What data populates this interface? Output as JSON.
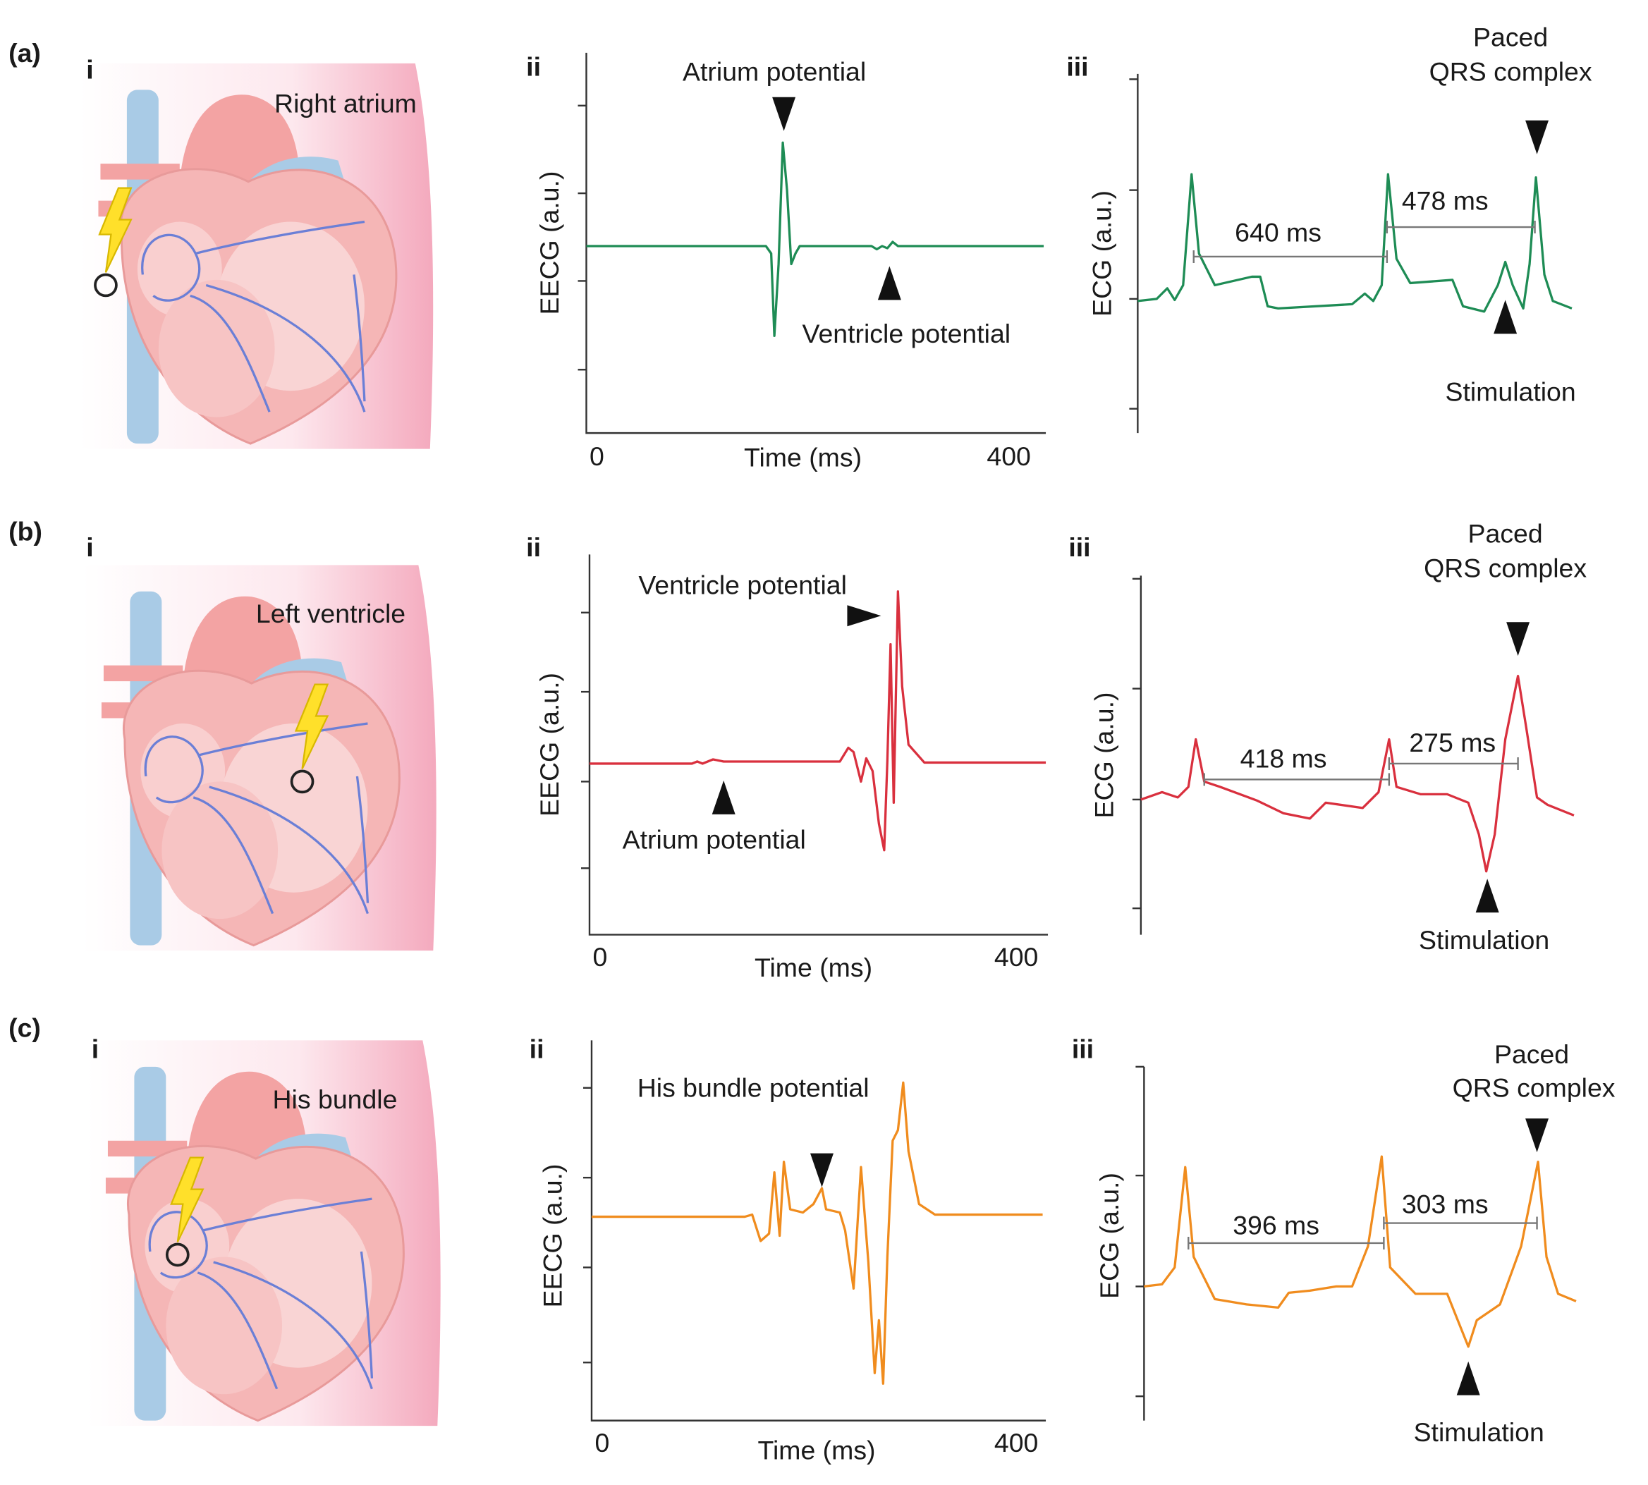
{
  "figure": {
    "panels": [
      {
        "label": "(a)",
        "color": "#1e8c55",
        "i": {
          "label": "i",
          "site": "Right atrium"
        },
        "ii": {
          "label": "ii",
          "y_label": "EECG (a.u.)",
          "x_label": "Time (ms)",
          "x_ticks": [
            "0",
            "400"
          ],
          "annotations": [
            "Atrium potential",
            "Ventricle potential"
          ]
        },
        "iii": {
          "label": "iii",
          "y_label": "ECG (a.u.)",
          "intervals": [
            "640 ms",
            "478 ms"
          ],
          "paced": [
            "Paced",
            "QRS complex"
          ],
          "stimulation": "Stimulation"
        }
      },
      {
        "label": "(b)",
        "color": "#d9303e",
        "i": {
          "label": "i",
          "site": "Left ventricle"
        },
        "ii": {
          "label": "ii",
          "y_label": "EECG (a.u.)",
          "x_label": "Time (ms)",
          "x_ticks": [
            "0",
            "400"
          ],
          "annotations": [
            "Ventricle potential",
            "Atrium potential"
          ]
        },
        "iii": {
          "label": "iii",
          "y_label": "ECG (a.u.)",
          "intervals": [
            "418 ms",
            "275 ms"
          ],
          "paced": [
            "Paced",
            "QRS complex"
          ],
          "stimulation": "Stimulation"
        }
      },
      {
        "label": "(c)",
        "color": "#f08c1e",
        "i": {
          "label": "i",
          "site": "His bundle"
        },
        "ii": {
          "label": "ii",
          "y_label": "EECG (a.u.)",
          "x_label": "Time (ms)",
          "x_ticks": [
            "0",
            "400"
          ],
          "annotations": [
            "His bundle potential"
          ]
        },
        "iii": {
          "label": "iii",
          "y_label": "ECG (a.u.)",
          "intervals": [
            "396 ms",
            "303 ms"
          ],
          "paced": [
            "Paced",
            "QRS complex"
          ],
          "stimulation": "Stimulation"
        }
      }
    ]
  }
}
